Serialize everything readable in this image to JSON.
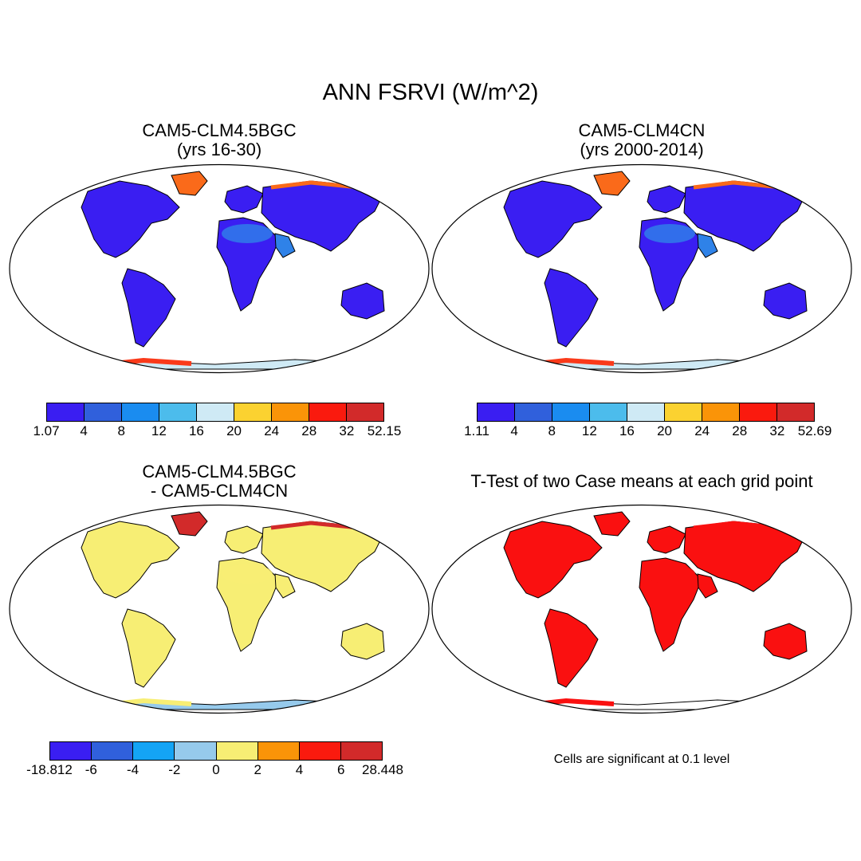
{
  "title": "ANN FSRVI (W/m^2)",
  "panels": [
    {
      "id": "p1",
      "title_line1": "CAM5-CLM4.5BGC",
      "title_line2": "(yrs 16-30)",
      "colorbar": {
        "colors": [
          "#3a1ef2",
          "#3060dc",
          "#1a8cf0",
          "#4cbcec",
          "#cfeaf5",
          "#fbd230",
          "#fa9408",
          "#fa1a0e",
          "#d22a2a"
        ],
        "labels": [
          "1.07",
          "4",
          "8",
          "12",
          "16",
          "20",
          "24",
          "28",
          "32",
          "52.15"
        ]
      }
    },
    {
      "id": "p2",
      "title_line1": "CAM5-CLM4CN",
      "title_line2": "(yrs 2000-2014)",
      "colorbar": {
        "colors": [
          "#3a1ef2",
          "#3060dc",
          "#1a8cf0",
          "#4cbcec",
          "#cfeaf5",
          "#fbd230",
          "#fa9408",
          "#fa1a0e",
          "#d22a2a"
        ],
        "labels": [
          "1.11",
          "4",
          "8",
          "12",
          "16",
          "20",
          "24",
          "28",
          "32",
          "52.69"
        ]
      }
    },
    {
      "id": "p3",
      "title_line1": "CAM5-CLM4.5BGC",
      "title_line2": "- CAM5-CLM4CN",
      "colorbar": {
        "colors": [
          "#3a1ef2",
          "#3060dc",
          "#14a4f5",
          "#96caec",
          "#f7ee74",
          "#fa9408",
          "#fa1a0e",
          "#d22a2a"
        ],
        "labels": [
          "-18.812",
          "-6",
          "-4",
          "-2",
          "0",
          "2",
          "4",
          "6",
          "28.448"
        ]
      }
    },
    {
      "id": "p4",
      "title_line1": "T-Test of two Case means at each grid point",
      "note": "Cells are significant at 0.1 level"
    }
  ],
  "map_fill": {
    "p1": {
      "land": "#3a1ef2",
      "desert": "#2f82e8",
      "arctic": "#fa6a1a",
      "antarctic": "#cfeaf5",
      "antarctic_edge": "#fa3a1a"
    },
    "p2": {
      "land": "#3a1ef2",
      "desert": "#2f82e8",
      "arctic": "#fa6a1a",
      "antarctic": "#cfeaf5",
      "antarctic_edge": "#fa3a1a"
    },
    "p3": {
      "land": "#f7ee74",
      "desert": "#f7ee74",
      "arctic": "#d22a2a",
      "antarctic": "#96caec",
      "antarctic_edge": "#f7ee74"
    },
    "p4": {
      "land": "#fa1010",
      "desert": "#fa1010",
      "arctic": "#fa1010",
      "antarctic": "#ffffff",
      "antarctic_edge": "#fa1010"
    }
  }
}
